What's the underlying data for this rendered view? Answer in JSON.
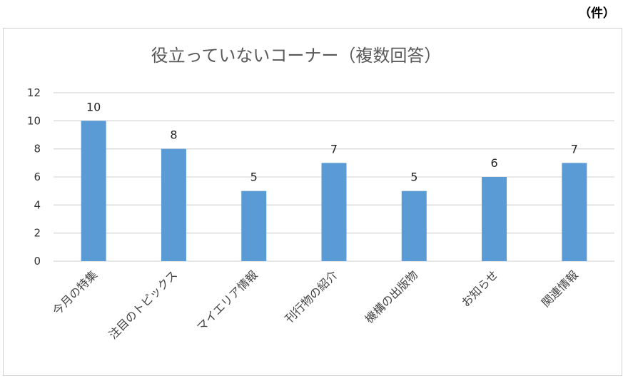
{
  "unit_label": "（件）",
  "chart_data": {
    "type": "bar",
    "title": "役立っていないコーナー（複数回答）",
    "categories": [
      "今月の特集",
      "注目のトピックス",
      "マイエリア情報",
      "刊行物の紹介",
      "機構の出版物",
      "お知らせ",
      "関連情報"
    ],
    "values": [
      10,
      8,
      5,
      7,
      5,
      6,
      7
    ],
    "ylim": [
      0,
      12
    ],
    "yticks": [
      0,
      2,
      4,
      6,
      8,
      10,
      12
    ],
    "grid": true,
    "bar_color": "#5b9bd5",
    "grid_color": "#d9d9d9"
  }
}
